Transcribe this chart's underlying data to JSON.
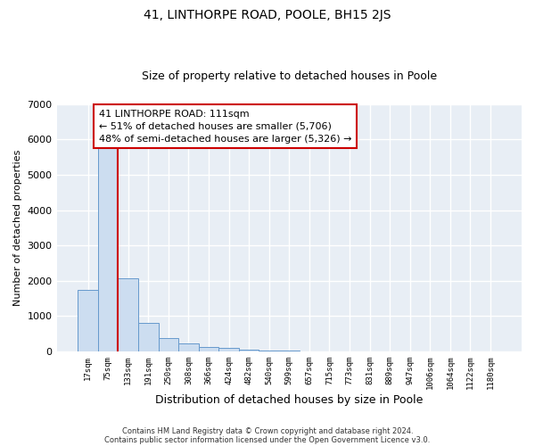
{
  "title": "41, LINTHORPE ROAD, POOLE, BH15 2JS",
  "subtitle": "Size of property relative to detached houses in Poole",
  "xlabel": "Distribution of detached houses by size in Poole",
  "ylabel": "Number of detached properties",
  "bar_values": [
    1750,
    5780,
    2070,
    800,
    370,
    230,
    120,
    100,
    50,
    30,
    20,
    0,
    0,
    0,
    0,
    0,
    0,
    0,
    0,
    0,
    0
  ],
  "bin_labels": [
    "17sqm",
    "75sqm",
    "133sqm",
    "191sqm",
    "250sqm",
    "308sqm",
    "366sqm",
    "424sqm",
    "482sqm",
    "540sqm",
    "599sqm",
    "657sqm",
    "715sqm",
    "773sqm",
    "831sqm",
    "889sqm",
    "947sqm",
    "1006sqm",
    "1064sqm",
    "1122sqm",
    "1180sqm"
  ],
  "bar_color": "#ccddf0",
  "bar_edge_color": "#6699cc",
  "vline_color": "#cc0000",
  "annotation_text": "41 LINTHORPE ROAD: 111sqm\n← 51% of detached houses are smaller (5,706)\n48% of semi-detached houses are larger (5,326) →",
  "annotation_box_facecolor": "white",
  "annotation_box_edgecolor": "#cc0000",
  "ylim": [
    0,
    7000
  ],
  "yticks": [
    0,
    1000,
    2000,
    3000,
    4000,
    5000,
    6000,
    7000
  ],
  "background_color": "#ffffff",
  "plot_bg_color": "#e8eef5",
  "grid_color": "#ffffff",
  "title_fontsize": 10,
  "subtitle_fontsize": 9,
  "ylabel_fontsize": 8,
  "xlabel_fontsize": 9,
  "footer_line1": "Contains HM Land Registry data © Crown copyright and database right 2024.",
  "footer_line2": "Contains public sector information licensed under the Open Government Licence v3.0."
}
